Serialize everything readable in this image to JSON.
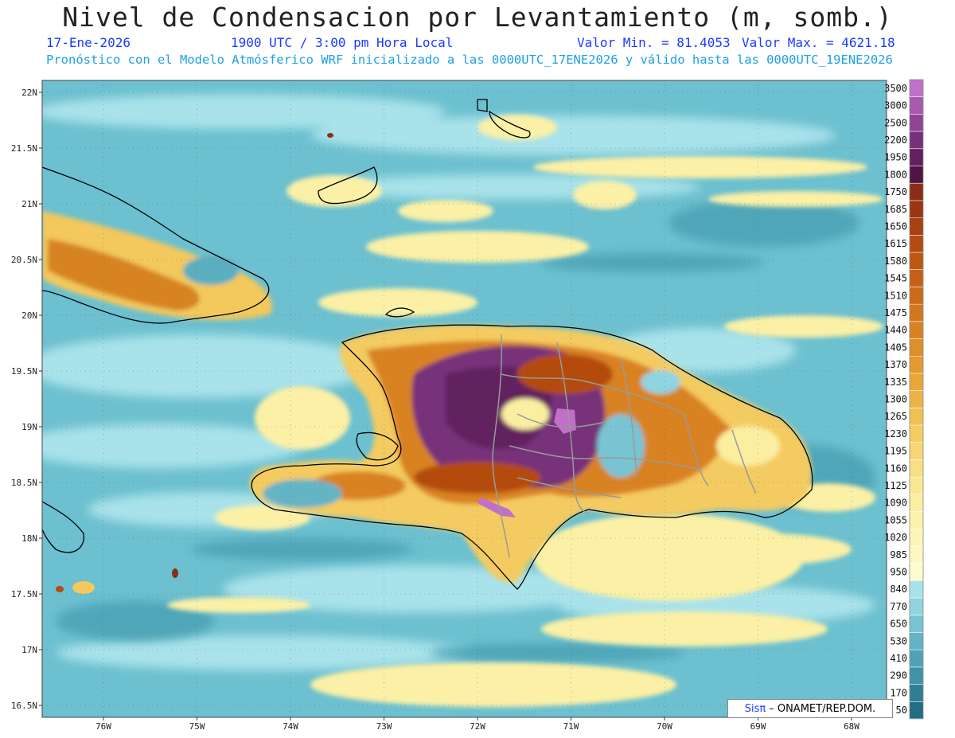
{
  "header": {
    "title": "Nivel de Condensacion por Levantamiento (m, somb.)",
    "date": "17-Ene-2026",
    "time": "1900 UTC / 3:00 pm Hora Local",
    "min_label": "Valor Min. = 81.4053",
    "max_label": "Valor Max. = 4621.18",
    "forecast": "Pronóstico con el Modelo Atmósferico WRF inicializado a las 0000UTC_17ENE2026 y válido hasta las  0000UTC_19ENE2026"
  },
  "axes": {
    "lat_labels": [
      "22N",
      "21.5N",
      "21N",
      "20.5N",
      "20N",
      "19.5N",
      "19N",
      "18.5N",
      "18N",
      "17.5N",
      "17N",
      "16.5N"
    ],
    "lon_labels": [
      "76W",
      "75W",
      "74W",
      "73W",
      "72W",
      "71W",
      "70W",
      "69W",
      "68W"
    ]
  },
  "colorbar": {
    "levels": [
      "3500",
      "3000",
      "2500",
      "2200",
      "1950",
      "1800",
      "1750",
      "1685",
      "1650",
      "1615",
      "1580",
      "1545",
      "1510",
      "1475",
      "1440",
      "1405",
      "1370",
      "1335",
      "1300",
      "1265",
      "1230",
      "1195",
      "1160",
      "1125",
      "1090",
      "1055",
      "1020",
      "985",
      "950",
      "840",
      "770",
      "650",
      "530",
      "410",
      "290",
      "170",
      "50"
    ],
    "colors": [
      "#c070c8",
      "#a85bae",
      "#8f4594",
      "#77307a",
      "#62205f",
      "#4f1345",
      "#8a2d16",
      "#9b3612",
      "#a8410f",
      "#b44c10",
      "#bd5712",
      "#c56116",
      "#cc6b1a",
      "#d3761f",
      "#d98224",
      "#df8e2a",
      "#e49a31",
      "#e9a73a",
      "#edb445",
      "#f1c053",
      "#f4cc62",
      "#f6d673",
      "#f8df83",
      "#fae792",
      "#fbeea1",
      "#fcf2ad",
      "#fdf5b8",
      "#fef8c3",
      "#fefbd0",
      "#a8e3ea",
      "#8fd4df",
      "#78c4d2",
      "#63b4c5",
      "#50a3b7",
      "#3f92a8",
      "#307f97",
      "#236d85"
    ]
  },
  "credit": {
    "logo": "Sisπ",
    "text": "– ONAMET/REP.DOM."
  },
  "map": {
    "ocean_color": "#6cc0cf",
    "coast_color": "#000000",
    "border_color": "#9a9a9a"
  }
}
